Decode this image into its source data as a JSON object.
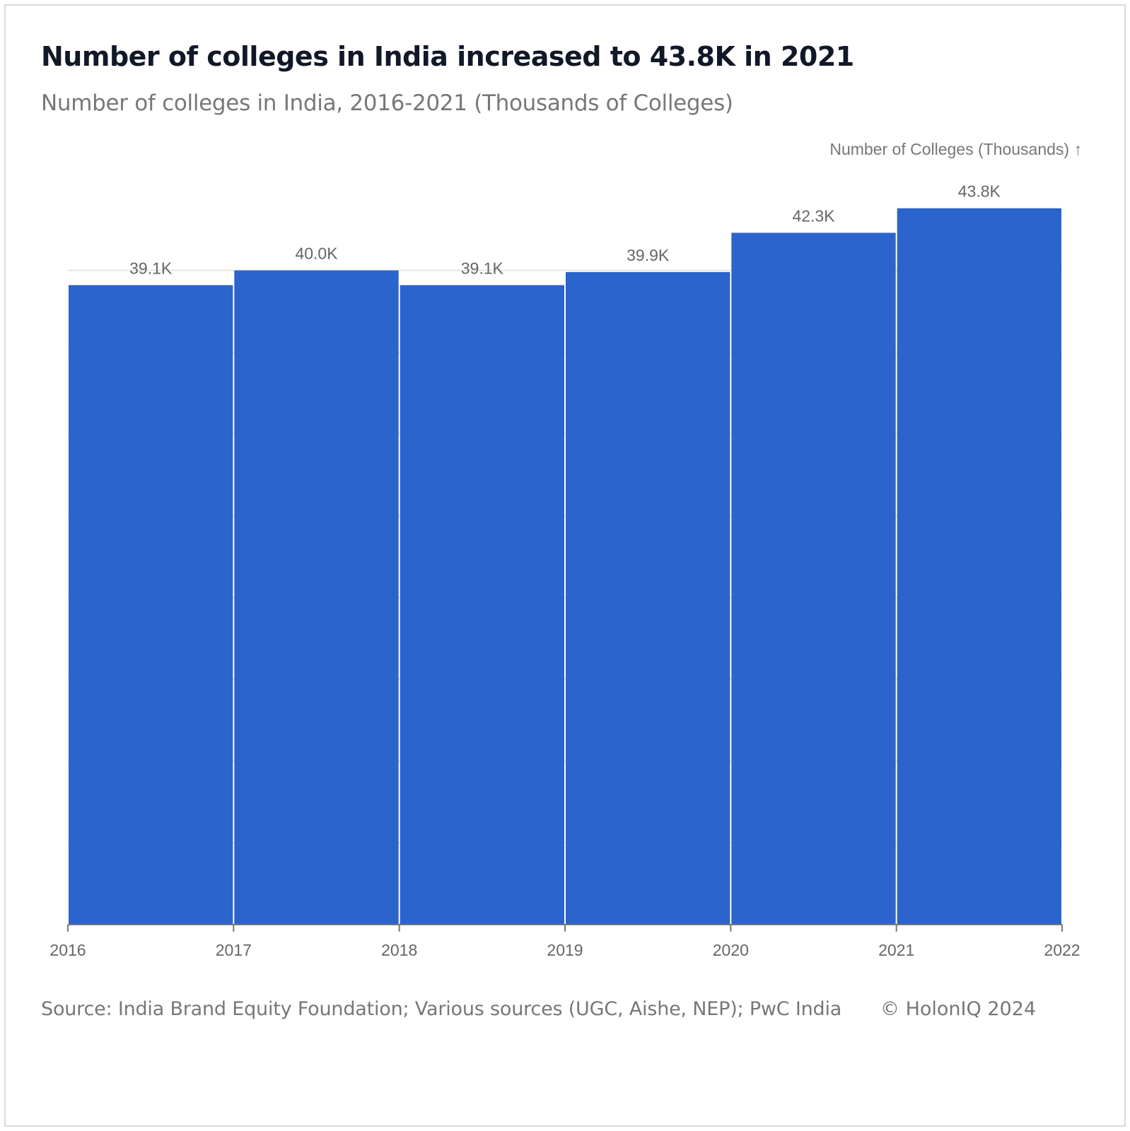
{
  "title": "Number of colleges in India increased to 43.8K in 2021",
  "subtitle": "Number of colleges in India, 2016-2021 (Thousands of Colleges)",
  "source": "Source: India Brand Equity Foundation; Various sources (UGC, Aishe, NEP); PwC India",
  "copyright": "© HolonIQ 2024",
  "chart_data": {
    "type": "bar",
    "title": "Number of colleges in India increased to 43.8K in 2021",
    "subtitle": "Number of colleges in India, 2016-2021 (Thousands of Colleges)",
    "ylabel": "Number of Colleges (Thousands) ↑",
    "xlabel": "",
    "x_ticks": [
      "2016",
      "2017",
      "2018",
      "2019",
      "2020",
      "2021",
      "2022"
    ],
    "categories": [
      "2016",
      "2017",
      "2018",
      "2019",
      "2020",
      "2021"
    ],
    "values": [
      39.1,
      40.0,
      39.1,
      39.9,
      42.3,
      43.8
    ],
    "data_labels": [
      "39.1K",
      "40.0K",
      "39.1K",
      "39.9K",
      "42.3K",
      "43.8K"
    ],
    "ylim": [
      0,
      44
    ],
    "grid": true,
    "bar_color": "#2a64cc"
  }
}
